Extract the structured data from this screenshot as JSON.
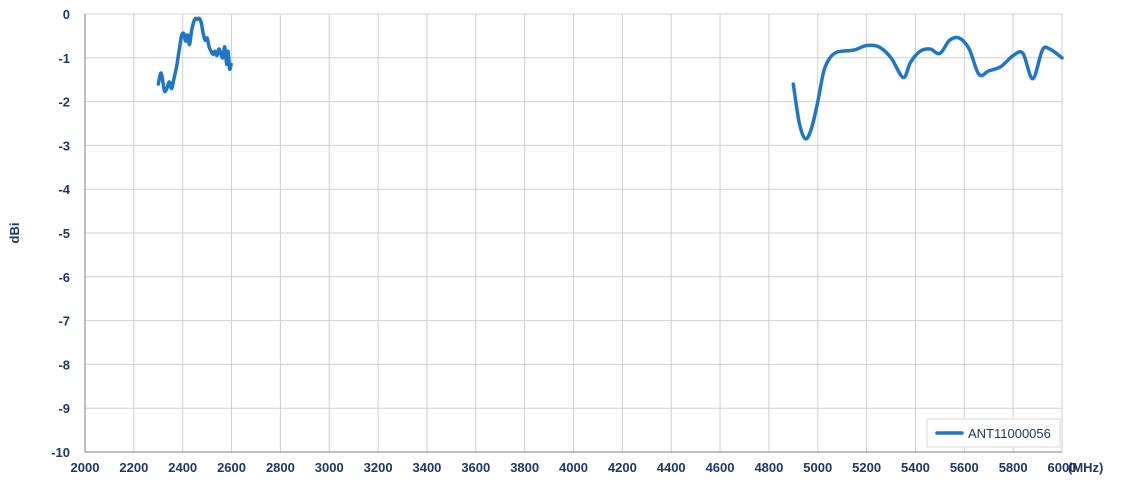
{
  "chart_data": {
    "type": "line",
    "title": "",
    "xlabel": "(MHz)",
    "ylabel": "dBi",
    "xlim": [
      2000,
      6000
    ],
    "ylim": [
      -10,
      0
    ],
    "x_ticks": [
      2000,
      2200,
      2400,
      2600,
      2800,
      3000,
      3200,
      3400,
      3600,
      3800,
      4000,
      4200,
      4400,
      4600,
      4800,
      5000,
      5200,
      5400,
      5600,
      5800,
      6000
    ],
    "y_ticks": [
      0,
      -1,
      -2,
      -3,
      -4,
      -5,
      -6,
      -7,
      -8,
      -9,
      -10
    ],
    "grid": true,
    "legend_position": "bottom-right",
    "series_color": "#1f77c4",
    "series": [
      {
        "name": "ANT11000056",
        "segments": [
          {
            "x": [
              2300,
              2312,
              2325,
              2335,
              2345,
              2355,
              2365,
              2375,
              2385,
              2395,
              2405,
              2412,
              2420,
              2428,
              2436,
              2444,
              2452,
              2460,
              2468,
              2476,
              2484,
              2492,
              2500,
              2508,
              2516,
              2524,
              2532,
              2540,
              2548,
              2556,
              2564,
              2572,
              2580,
              2586,
              2592,
              2598
            ],
            "y": [
              -1.6,
              -1.35,
              -1.75,
              -1.7,
              -1.55,
              -1.7,
              -1.45,
              -1.2,
              -0.85,
              -0.5,
              -0.45,
              -0.62,
              -0.48,
              -0.7,
              -0.4,
              -0.2,
              -0.1,
              -0.12,
              -0.1,
              -0.2,
              -0.45,
              -0.6,
              -0.55,
              -0.75,
              -0.85,
              -0.92,
              -0.85,
              -0.95,
              -0.8,
              -0.9,
              -1.0,
              -0.75,
              -1.15,
              -0.85,
              -1.25,
              -1.15
            ]
          },
          {
            "x": [
              4900,
              4925,
              4950,
              4975,
              5000,
              5025,
              5050,
              5075,
              5100,
              5150,
              5200,
              5250,
              5300,
              5350,
              5380,
              5420,
              5460,
              5500,
              5540,
              5580,
              5620,
              5660,
              5700,
              5750,
              5800,
              5840,
              5880,
              5920,
              5950,
              6000
            ],
            "y": [
              -1.6,
              -2.5,
              -2.85,
              -2.6,
              -2.0,
              -1.3,
              -1.0,
              -0.88,
              -0.85,
              -0.82,
              -0.72,
              -0.75,
              -1.0,
              -1.45,
              -1.1,
              -0.85,
              -0.8,
              -0.9,
              -0.6,
              -0.55,
              -0.8,
              -1.38,
              -1.3,
              -1.2,
              -0.95,
              -0.9,
              -1.48,
              -0.82,
              -0.8,
              -1.0
            ]
          }
        ]
      }
    ]
  }
}
